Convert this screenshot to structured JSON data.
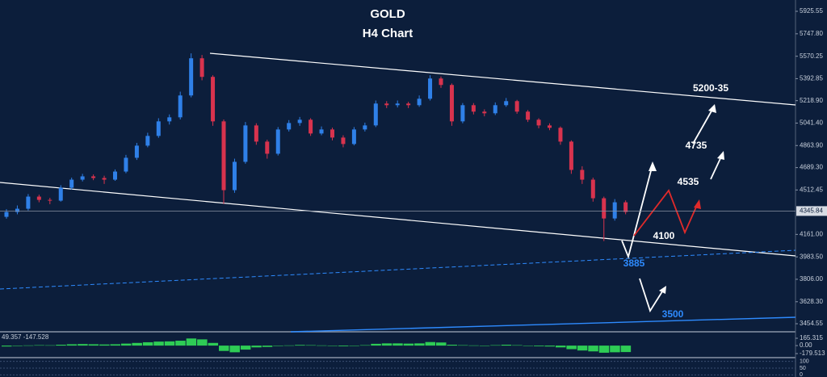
{
  "chart_data": {
    "type": "candlestick",
    "title": "GOLD",
    "subtitle": "H4 Chart",
    "open": [
      4300,
      4338,
      4364,
      4460,
      4434,
      4428,
      4530,
      4594,
      4620,
      4607,
      4594,
      4658,
      4767,
      4863,
      4940,
      5055,
      5087,
      5260,
      5554,
      5407,
      5055,
      4511,
      4735,
      5023,
      4895,
      4799,
      4991,
      5042,
      5068,
      4959,
      4991,
      4927,
      4876,
      4991,
      5023,
      5196,
      5183,
      5196,
      5183,
      5234,
      5394,
      5343,
      5055,
      5183,
      5132,
      5119,
      5183,
      5215,
      5132,
      5068,
      5023,
      5004,
      4895,
      4671,
      4594,
      4447,
      4287,
      4415
    ],
    "high": [
      4360,
      4390,
      4480,
      4475,
      4450,
      4550,
      4610,
      4640,
      4635,
      4625,
      4675,
      4790,
      4885,
      4965,
      5080,
      5110,
      5290,
      5593,
      5580,
      5420,
      5070,
      4760,
      5050,
      5040,
      4910,
      5010,
      5065,
      5090,
      5080,
      5015,
      5005,
      4945,
      5010,
      5045,
      5220,
      5215,
      5220,
      5210,
      5260,
      5420,
      5410,
      5355,
      5200,
      5200,
      5150,
      5205,
      5240,
      5225,
      5145,
      5080,
      5040,
      5015,
      4905,
      4700,
      4610,
      4460,
      4440,
      4430
    ],
    "low": [
      4285,
      4320,
      4350,
      4415,
      4400,
      4420,
      4515,
      4580,
      4590,
      4560,
      4585,
      4645,
      4750,
      4850,
      4925,
      5030,
      5070,
      5245,
      5380,
      5020,
      4402,
      4490,
      4720,
      4870,
      4760,
      4785,
      4975,
      5020,
      4940,
      4945,
      4905,
      4850,
      4865,
      4975,
      5010,
      5160,
      5165,
      5160,
      5170,
      5220,
      5320,
      5020,
      5040,
      5110,
      5095,
      5105,
      5170,
      5115,
      5050,
      5000,
      4985,
      4870,
      4640,
      4560,
      4420,
      4108,
      4270,
      4320
    ],
    "close": [
      4338,
      4364,
      4460,
      4434,
      4428,
      4530,
      4594,
      4620,
      4607,
      4594,
      4658,
      4767,
      4863,
      4940,
      5055,
      5087,
      5260,
      5554,
      5407,
      5055,
      4511,
      4735,
      5023,
      4895,
      4799,
      4991,
      5042,
      5068,
      4959,
      4991,
      4927,
      4876,
      4991,
      5023,
      5196,
      5183,
      5196,
      5183,
      5234,
      5394,
      5343,
      5055,
      5183,
      5132,
      5119,
      5183,
      5215,
      5132,
      5068,
      5023,
      5004,
      4895,
      4671,
      4594,
      4447,
      4287,
      4415,
      4338
    ],
    "up_color": "#2f80e8",
    "down_color": "#d8334e",
    "ylim": [
      3397,
      6015
    ],
    "yticks": [
      5925.55,
      {
        "value": 5747.8,
        "label": "5747.80"
      },
      5570.25,
      5392.85,
      {
        "value": 5218.9,
        "label": "5218.90"
      },
      {
        "value": 5041.4,
        "label": "5041.40"
      },
      {
        "value": 4863.9,
        "label": "4863.90"
      },
      {
        "value": 4689.3,
        "label": "4689.30"
      },
      4512.45,
      {
        "value": 4161,
        "label": "4161.00"
      },
      {
        "value": 3983.5,
        "label": "3983.50"
      },
      {
        "value": 3806,
        "label": "3806.00"
      },
      {
        "value": 3628.3,
        "label": "3628.30"
      },
      3454.55
    ],
    "last_price": 4345.84,
    "annotations": [
      "5200-35",
      "4735",
      "4535",
      "4100",
      "3885",
      "3500"
    ],
    "macd": {
      "label": "49.357 -147.528",
      "color": "#2ecc55",
      "values": [
        -20,
        -10,
        5,
        10,
        8,
        20,
        30,
        35,
        30,
        25,
        30,
        45,
        60,
        75,
        90,
        95,
        110,
        160,
        140,
        60,
        -120,
        -150,
        -90,
        -40,
        -30,
        -10,
        5,
        15,
        10,
        5,
        -5,
        -15,
        -5,
        10,
        40,
        50,
        50,
        45,
        50,
        80,
        70,
        20,
        10,
        5,
        0,
        10,
        20,
        10,
        -5,
        -15,
        -20,
        -40,
        -80,
        -110,
        -130,
        -160,
        -150,
        -145
      ],
      "ylim": [
        -252,
        292
      ],
      "yticks": [
        165.315,
        {
          "value": 0,
          "label": "0.00"
        },
        -179.513
      ]
    },
    "stochastic": {
      "ylim": [
        -10,
        110
      ],
      "yticks": [
        100,
        50,
        0
      ]
    }
  }
}
